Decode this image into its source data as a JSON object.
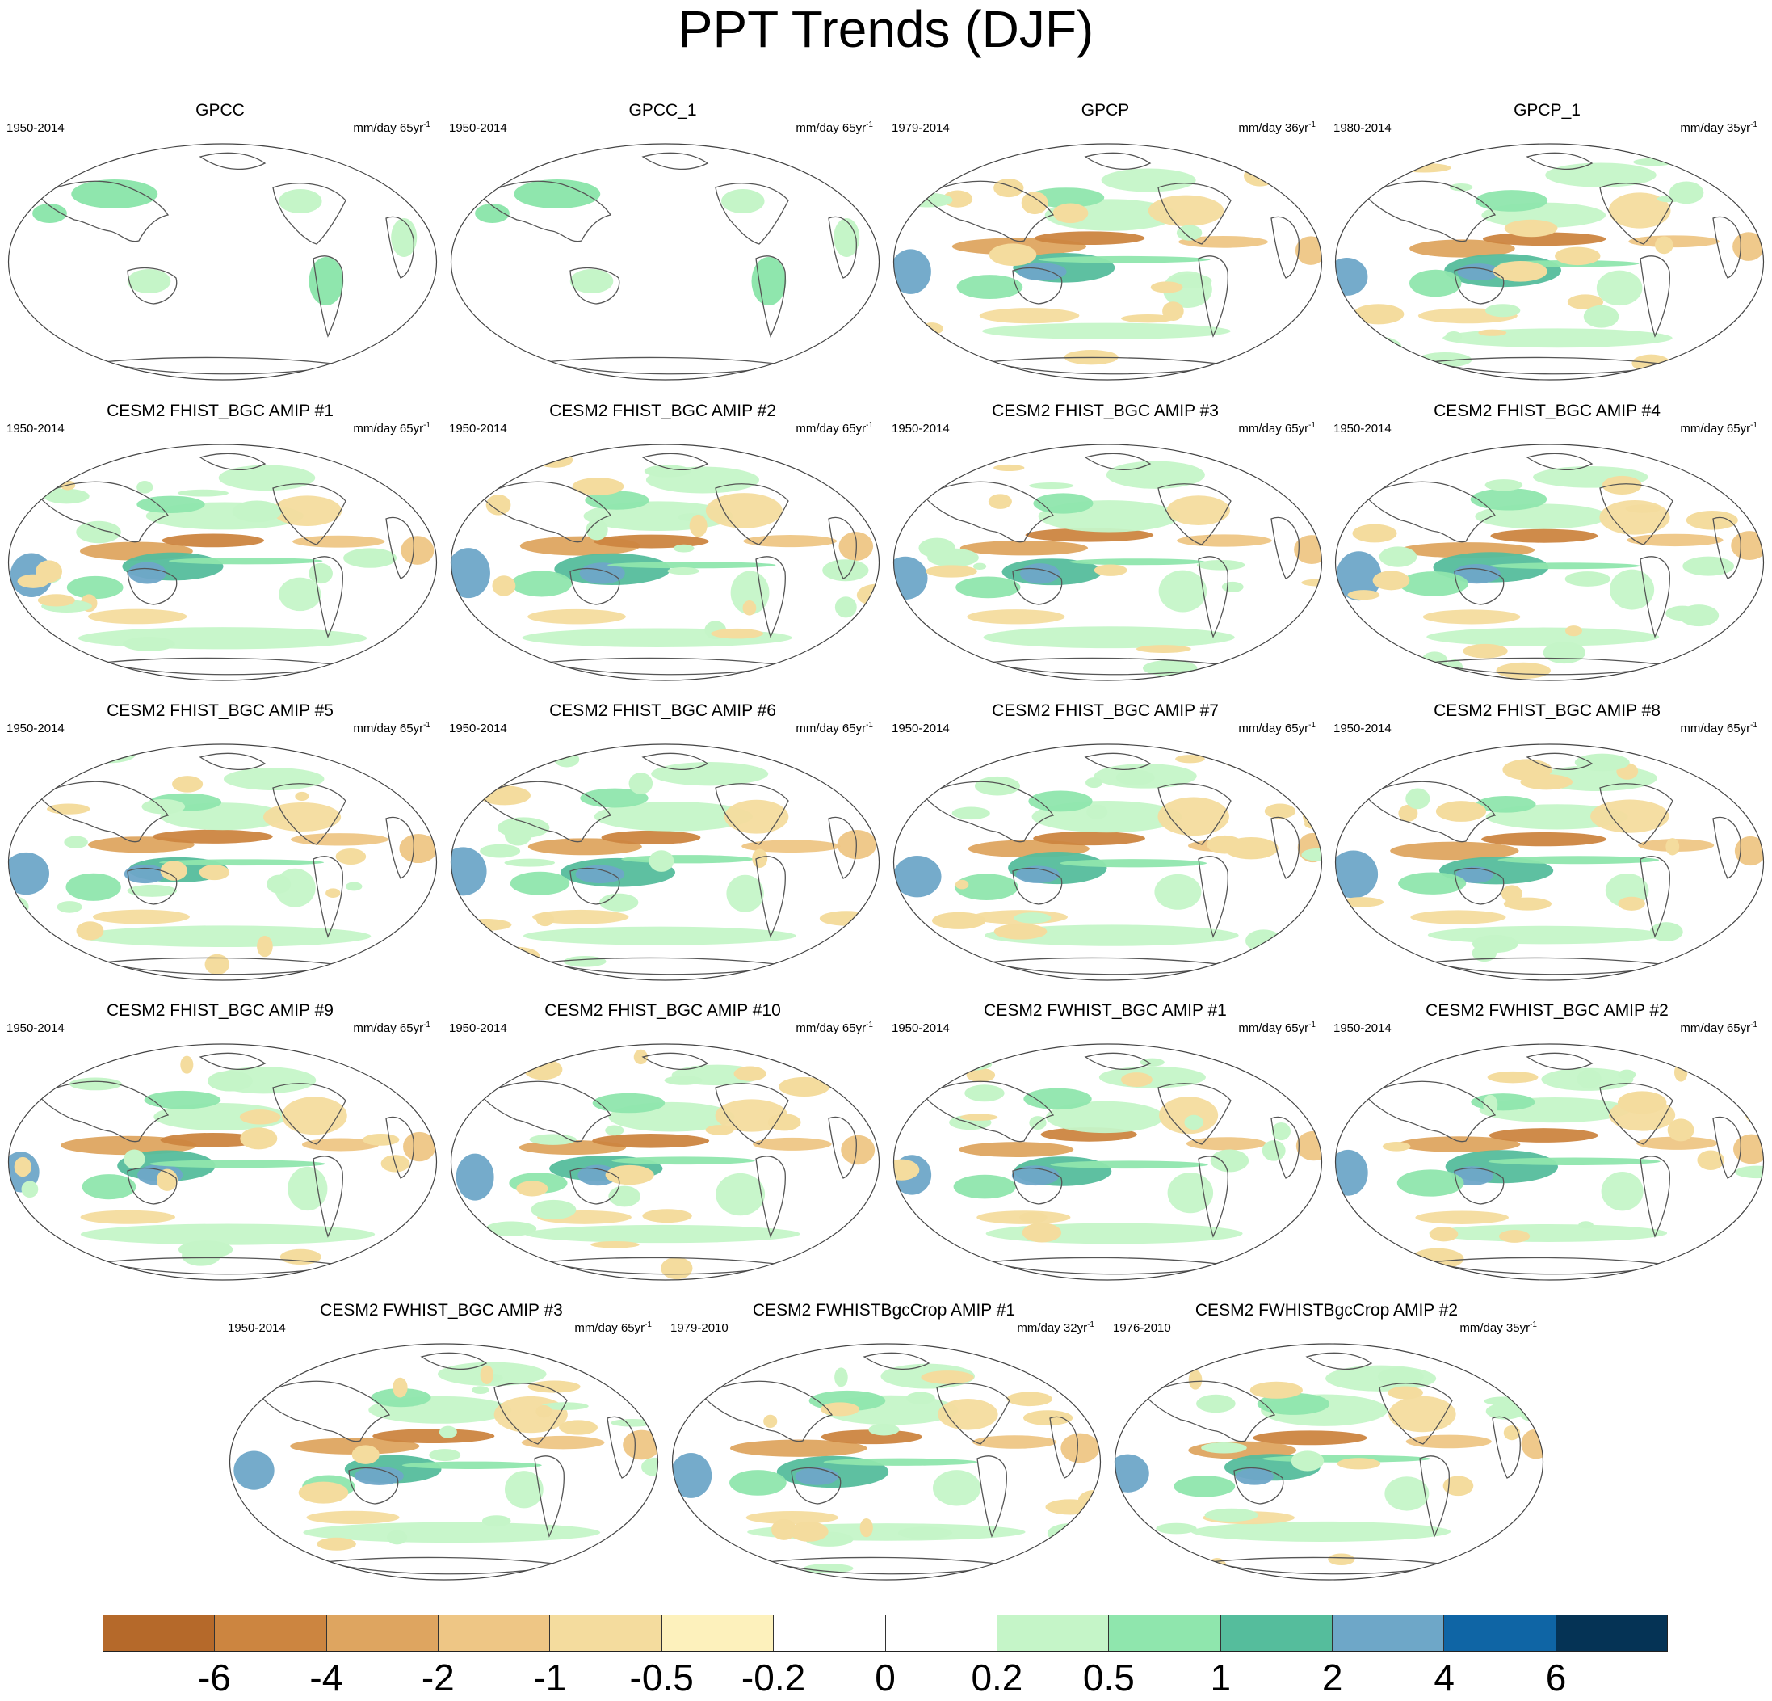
{
  "figure": {
    "title": "PPT Trends (DJF)"
  },
  "panels": [
    {
      "title": "GPCC",
      "period": "1950-2014",
      "units": "mm/day 65yr",
      "units_exp": "-1",
      "coverage": "land"
    },
    {
      "title": "GPCC_1",
      "period": "1950-2014",
      "units": "mm/day 65yr",
      "units_exp": "-1",
      "coverage": "land"
    },
    {
      "title": "GPCP",
      "period": "1979-2014",
      "units": "mm/day 36yr",
      "units_exp": "-1",
      "coverage": "global"
    },
    {
      "title": "GPCP_1",
      "period": "1980-2014",
      "units": "mm/day 35yr",
      "units_exp": "-1",
      "coverage": "global"
    },
    {
      "title": "CESM2 FHIST_BGC AMIP #1",
      "period": "1950-2014",
      "units": "mm/day 65yr",
      "units_exp": "-1",
      "coverage": "global"
    },
    {
      "title": "CESM2 FHIST_BGC AMIP #2",
      "period": "1950-2014",
      "units": "mm/day 65yr",
      "units_exp": "-1",
      "coverage": "global"
    },
    {
      "title": "CESM2 FHIST_BGC AMIP #3",
      "period": "1950-2014",
      "units": "mm/day 65yr",
      "units_exp": "-1",
      "coverage": "global"
    },
    {
      "title": "CESM2 FHIST_BGC AMIP #4",
      "period": "1950-2014",
      "units": "mm/day 65yr",
      "units_exp": "-1",
      "coverage": "global"
    },
    {
      "title": "CESM2 FHIST_BGC AMIP #5",
      "period": "1950-2014",
      "units": "mm/day 65yr",
      "units_exp": "-1",
      "coverage": "global"
    },
    {
      "title": "CESM2 FHIST_BGC AMIP #6",
      "period": "1950-2014",
      "units": "mm/day 65yr",
      "units_exp": "-1",
      "coverage": "global"
    },
    {
      "title": "CESM2 FHIST_BGC AMIP #7",
      "period": "1950-2014",
      "units": "mm/day 65yr",
      "units_exp": "-1",
      "coverage": "global"
    },
    {
      "title": "CESM2 FHIST_BGC AMIP #8",
      "period": "1950-2014",
      "units": "mm/day 65yr",
      "units_exp": "-1",
      "coverage": "global"
    },
    {
      "title": "CESM2 FHIST_BGC AMIP #9",
      "period": "1950-2014",
      "units": "mm/day 65yr",
      "units_exp": "-1",
      "coverage": "global"
    },
    {
      "title": "CESM2 FHIST_BGC AMIP #10",
      "period": "1950-2014",
      "units": "mm/day 65yr",
      "units_exp": "-1",
      "coverage": "global"
    },
    {
      "title": "CESM2 FWHIST_BGC AMIP #1",
      "period": "1950-2014",
      "units": "mm/day 65yr",
      "units_exp": "-1",
      "coverage": "global"
    },
    {
      "title": "CESM2 FWHIST_BGC AMIP #2",
      "period": "1950-2014",
      "units": "mm/day 65yr",
      "units_exp": "-1",
      "coverage": "global"
    },
    {
      "title": "CESM2 FWHIST_BGC AMIP #3",
      "period": "1950-2014",
      "units": "mm/day 65yr",
      "units_exp": "-1",
      "coverage": "global"
    },
    {
      "title": "CESM2 FWHISTBgcCrop AMIP #1",
      "period": "1979-2010",
      "units": "mm/day 32yr",
      "units_exp": "-1",
      "coverage": "global"
    },
    {
      "title": "CESM2 FWHISTBgcCrop AMIP #2",
      "period": "1976-2010",
      "units": "mm/day 35yr",
      "units_exp": "-1",
      "coverage": "global"
    }
  ],
  "colorbar": {
    "labels": [
      "-6",
      "-4",
      "-2",
      "-1",
      "-0.5",
      "-0.2",
      "0",
      "0.2",
      "0.5",
      "1",
      "2",
      "4",
      "6"
    ],
    "colors": [
      "#b5692a",
      "#cc8540",
      "#dea560",
      "#eec685",
      "#f4dc9e",
      "#fdf1bc",
      "#ffffff",
      "#ffffff",
      "#c5f5c8",
      "#8fe6ad",
      "#55bd9c",
      "#6ea7c8",
      "#0f65a5",
      "#053355"
    ]
  }
}
